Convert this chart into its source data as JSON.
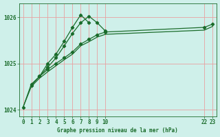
{
  "title": "Graphe pression niveau de la mer (hPa)",
  "bg_color": "#cff0ea",
  "grid_color": "#e8a0a0",
  "line_color": "#1a6b2a",
  "xlim": [
    -0.5,
    23.5
  ],
  "ylim": [
    1023.85,
    1026.3
  ],
  "yticks": [
    1024,
    1025,
    1026
  ],
  "xticks": [
    0,
    1,
    2,
    3,
    4,
    5,
    6,
    7,
    8,
    9,
    10,
    22,
    23
  ],
  "xtick_labels": [
    "0",
    "1",
    "2",
    "3",
    "4",
    "5",
    "6",
    "7",
    "8",
    "9",
    "10",
    "22",
    "23"
  ],
  "line1_x": [
    0,
    1,
    2,
    3,
    4,
    5,
    6,
    7,
    8,
    9,
    10,
    22,
    23
  ],
  "line1_y": [
    1024.05,
    1024.55,
    1024.72,
    1024.87,
    1025.0,
    1025.12,
    1025.25,
    1025.42,
    1025.52,
    1025.62,
    1025.68,
    1025.78,
    1025.85
  ],
  "line2_x": [
    0,
    1,
    2,
    3,
    4,
    5,
    6,
    7,
    8,
    9,
    10,
    22,
    23
  ],
  "line2_y": [
    1024.05,
    1024.5,
    1024.68,
    1024.82,
    1024.95,
    1025.08,
    1025.2,
    1025.38,
    1025.47,
    1025.57,
    1025.63,
    1025.72,
    1025.8
  ],
  "line3_x": [
    1,
    2,
    3,
    4,
    5,
    6,
    7,
    8,
    9,
    10
  ],
  "line3_y": [
    1024.52,
    1024.72,
    1024.92,
    1025.12,
    1025.38,
    1025.65,
    1025.88,
    1026.02,
    1025.88,
    1025.7
  ],
  "line4_x": [
    2,
    3,
    4,
    5,
    6,
    7,
    8
  ],
  "line4_y": [
    1024.72,
    1025.0,
    1025.2,
    1025.48,
    1025.78,
    1026.05,
    1025.88
  ]
}
